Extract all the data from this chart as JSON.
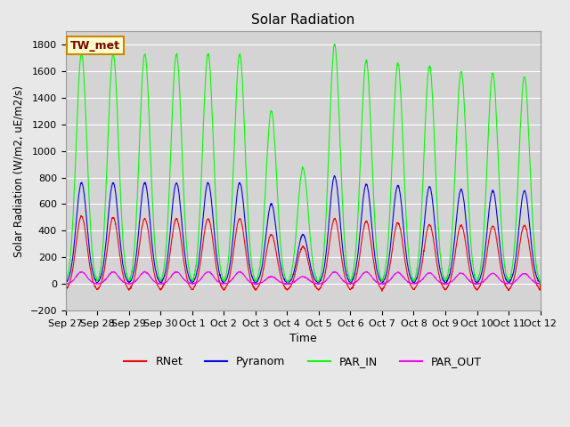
{
  "title": "Solar Radiation",
  "xlabel": "Time",
  "ylabel": "Solar Radiation (W/m2, uE/m2/s)",
  "ylim": [
    -200,
    1900
  ],
  "yticks": [
    -200,
    0,
    200,
    400,
    600,
    800,
    1000,
    1200,
    1400,
    1600,
    1800
  ],
  "bg_color": "#e8e8e8",
  "plot_bg_color": "#d4d4d4",
  "grid_color": "white",
  "line_colors": {
    "RNet": "#ff0000",
    "Pyranom": "#0000ff",
    "PAR_IN": "#00ff00",
    "PAR_OUT": "#ff00ff"
  },
  "legend_label": "TW_met",
  "legend_bg": "#ffffcc",
  "legend_border": "#cc8800",
  "tick_labels": [
    "Sep 27",
    "Sep 28",
    "Sep 29",
    "Sep 30",
    "Oct 1",
    "Oct 2",
    "Oct 3",
    "Oct 4",
    "Oct 5",
    "Oct 6",
    "Oct 7",
    "Oct 8",
    "Oct 9",
    "Oct 10",
    "Oct 11",
    "Oct 12"
  ],
  "par_in_peaks": [
    1730,
    1730,
    1730,
    1730,
    1730,
    1730,
    1300,
    870,
    1800,
    1680,
    1660,
    1640,
    1600,
    1590,
    1560,
    0
  ],
  "pyranom_peaks": [
    760,
    760,
    760,
    760,
    760,
    760,
    600,
    370,
    810,
    750,
    740,
    730,
    710,
    700,
    700,
    0
  ],
  "rnet_peaks": [
    510,
    500,
    490,
    490,
    490,
    490,
    370,
    280,
    490,
    470,
    460,
    445,
    440,
    435,
    440,
    0
  ],
  "par_out_peaks": [
    90,
    90,
    90,
    90,
    90,
    90,
    55,
    55,
    90,
    90,
    85,
    82,
    80,
    78,
    78,
    0
  ],
  "rnet_night": -80
}
